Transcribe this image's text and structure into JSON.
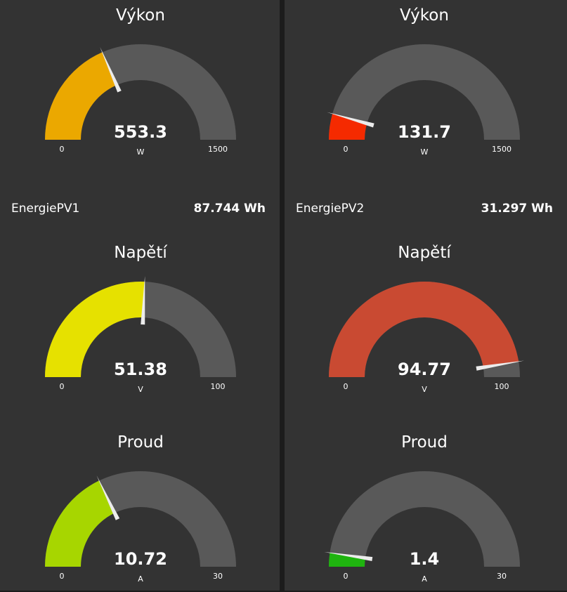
{
  "panels": [
    {
      "gauges": [
        {
          "title": "Výkon",
          "value": 553.3,
          "value_text": "553.3",
          "unit": "W",
          "min": 0,
          "max": 1500,
          "min_text": "0",
          "max_text": "1500",
          "color": "#eba800"
        },
        {
          "title": "Napětí",
          "value": 51.38,
          "value_text": "51.38",
          "unit": "V",
          "min": 0,
          "max": 100,
          "min_text": "0",
          "max_text": "100",
          "color": "#e6e100"
        },
        {
          "title": "Proud",
          "value": 10.72,
          "value_text": "10.72",
          "unit": "A",
          "min": 0,
          "max": 30,
          "min_text": "0",
          "max_text": "30",
          "color": "#a7d600"
        }
      ],
      "energy": {
        "label": "EnergiePV1",
        "value": "87.744 Wh"
      }
    },
    {
      "gauges": [
        {
          "title": "Výkon",
          "value": 131.7,
          "value_text": "131.7",
          "unit": "W",
          "min": 0,
          "max": 1500,
          "min_text": "0",
          "max_text": "1500",
          "color": "#f52a00"
        },
        {
          "title": "Napětí",
          "value": 94.77,
          "value_text": "94.77",
          "unit": "V",
          "min": 0,
          "max": 100,
          "min_text": "0",
          "max_text": "100",
          "color": "#c94a32"
        },
        {
          "title": "Proud",
          "value": 1.4,
          "value_text": "1.4",
          "unit": "A",
          "min": 0,
          "max": 30,
          "min_text": "0",
          "max_text": "30",
          "color": "#1fb40f"
        }
      ],
      "energy": {
        "label": "EnergiePV2",
        "value": "31.297 Wh"
      }
    }
  ],
  "theme": {
    "track_color": "#595959",
    "needle_color": "#ececec",
    "panel_bg": "#333333"
  }
}
